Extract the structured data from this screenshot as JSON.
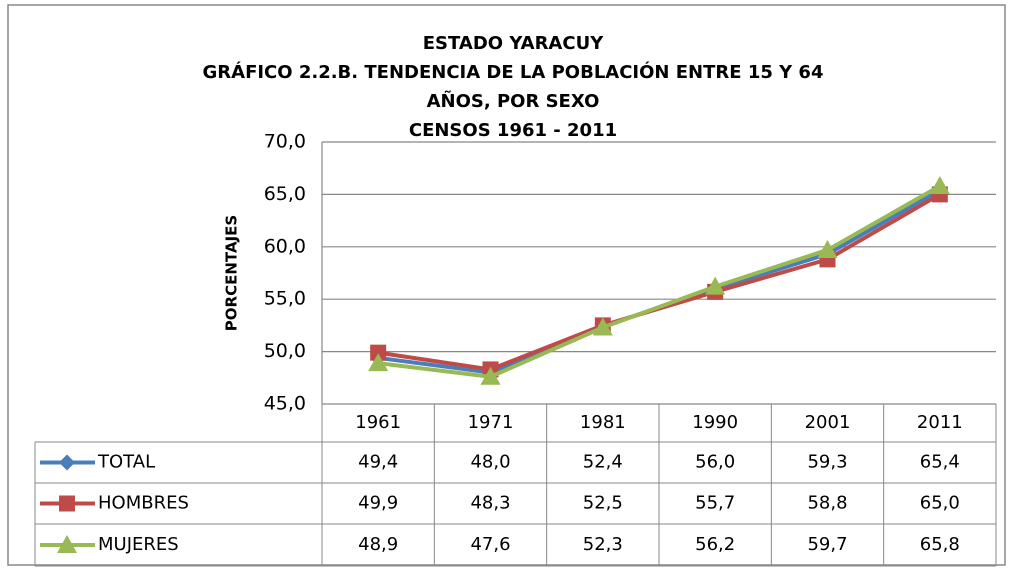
{
  "chart_data": {
    "type": "line",
    "title": [
      "ESTADO YARACUY",
      "GRÁFICO 2.2.B. TENDENCIA DE LA POBLACIÓN ENTRE 15 Y 64",
      "AÑOS, POR SEXO",
      "CENSOS 1961 - 2011"
    ],
    "y_label": "PORCENTAJES",
    "categories": [
      "1961",
      "1971",
      "1981",
      "1990",
      "2001",
      "2011"
    ],
    "series": [
      {
        "name": "TOTAL",
        "color": "#4a7ebb",
        "marker": "diamond",
        "values": [
          49.4,
          48.0,
          52.4,
          56.0,
          59.3,
          65.4
        ],
        "value_labels": [
          "49,4",
          "48,0",
          "52,4",
          "56,0",
          "59,3",
          "65,4"
        ]
      },
      {
        "name": "HOMBRES",
        "color": "#be4b48",
        "marker": "square",
        "values": [
          49.9,
          48.3,
          52.5,
          55.7,
          58.8,
          65.0
        ],
        "value_labels": [
          "49,9",
          "48,3",
          "52,5",
          "55,7",
          "58,8",
          "65,0"
        ]
      },
      {
        "name": "MUJERES",
        "color": "#98b954",
        "marker": "triangle",
        "values": [
          48.9,
          47.6,
          52.3,
          56.2,
          59.7,
          65.8
        ],
        "value_labels": [
          "48,9",
          "47,6",
          "52,3",
          "56,2",
          "59,7",
          "65,8"
        ]
      }
    ],
    "ylim": [
      45,
      70
    ],
    "yticks": [
      {
        "value": 45,
        "label": "45,0"
      },
      {
        "value": 50,
        "label": "50,0"
      },
      {
        "value": 55,
        "label": "55,0"
      },
      {
        "value": 60,
        "label": "60,0"
      },
      {
        "value": 65,
        "label": "65,0"
      },
      {
        "value": 70,
        "label": "70,0"
      }
    ],
    "grid": true,
    "data_table": true
  }
}
